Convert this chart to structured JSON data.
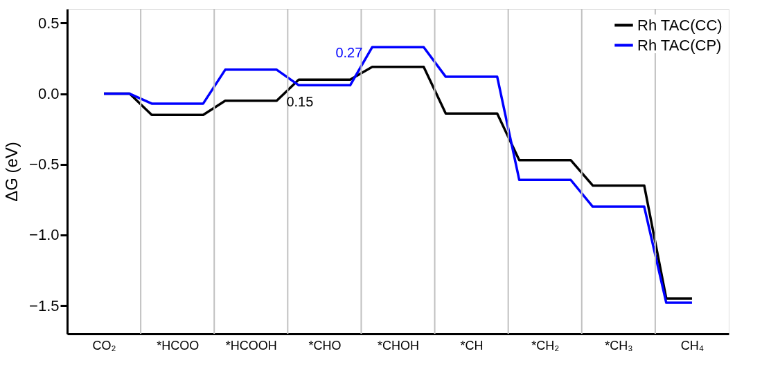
{
  "chart_data": {
    "type": "step",
    "ylabel": "ΔG (eV)",
    "categories": [
      "CO₂",
      "*HCOO",
      "*HCOOH",
      "*CHO",
      "*CHOH",
      "*CH",
      "*CH₂",
      "*CH₃",
      "CH₄"
    ],
    "series": [
      {
        "name": "Rh TAC(CC)",
        "color": "#000000",
        "values": [
          0,
          -0.15,
          -0.05,
          0.1,
          0.19,
          -0.14,
          -0.47,
          -0.65,
          -1.45
        ]
      },
      {
        "name": "Rh TAC(CP)",
        "color": "#0000ff",
        "values": [
          0,
          -0.07,
          0.17,
          0.06,
          0.33,
          0.12,
          -0.61,
          -0.8,
          -1.48
        ]
      }
    ],
    "annotations": [
      {
        "text": "0.15",
        "x": "*HCOOH",
        "y": -0.05
      },
      {
        "text": "0.27",
        "x": "*CHOH",
        "y": 0.33
      }
    ],
    "ylim": [
      -1.7,
      0.6
    ],
    "yticks": [
      {
        "value": 0.5,
        "label": "0.5"
      },
      {
        "value": 0.0,
        "label": "0.0"
      },
      {
        "value": -0.5,
        "label": "−0.5"
      },
      {
        "value": -1.0,
        "label": "−1.0"
      },
      {
        "value": -1.5,
        "label": "−1.5"
      }
    ],
    "grid": "x",
    "legend": "top right",
    "line_style": "solid",
    "marker": "none"
  }
}
